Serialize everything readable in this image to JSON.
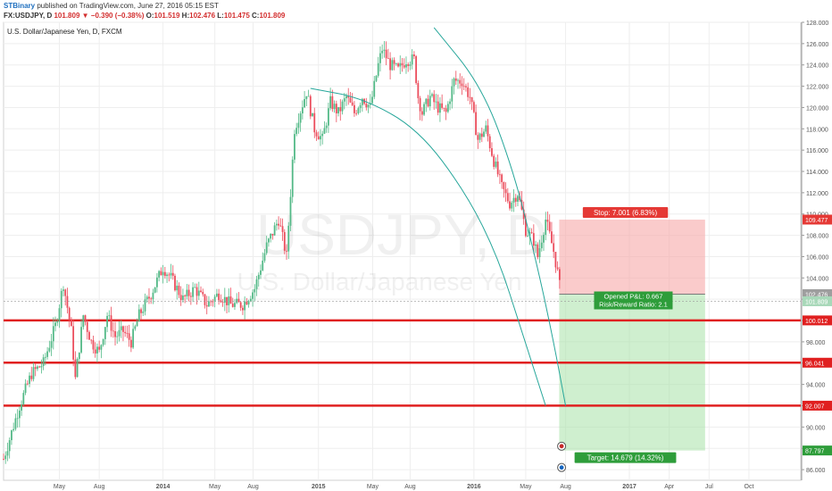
{
  "header": {
    "author": "STBinary",
    "published": " published on TradingView.com, June 27, 2016 05:15 EST",
    "symbol": "FX:USDJPY, D",
    "last_value": "101.809",
    "change": "−0.390 (−0.38%)",
    "o_label": "O:",
    "o_value": "101.519",
    "h_label": "H:",
    "h_value": "102.476",
    "l_label": "L:",
    "l_value": "101.475",
    "c_label": "C:",
    "c_value": "101.809"
  },
  "chart_title": "U.S. Dollar/Japanese Yen, D, FXCM",
  "watermark": {
    "symbol": "USDJPY, D",
    "name": "U.S. Dollar/Japanese Yen"
  },
  "colors": {
    "up": "#53b987",
    "down": "#eb4d5c",
    "level": "#e02020",
    "curve": "#26a69a",
    "stop_zone": "#f7a8a8",
    "target_zone": "#9fdf9f"
  },
  "chart_data": {
    "type": "candlestick",
    "ylim": [
      85,
      128
    ],
    "y_ticks": [
      "86.000",
      "88.000",
      "90.000",
      "92.000",
      "94.000",
      "96.000",
      "98.000",
      "100.000",
      "102.000",
      "104.000",
      "106.000",
      "108.000",
      "110.000",
      "112.000",
      "114.000",
      "116.000",
      "118.000",
      "120.000",
      "122.000",
      "124.000",
      "126.000",
      "128.000"
    ],
    "x_ticks": [
      "May",
      "Aug",
      "2014",
      "May",
      "Aug",
      "2015",
      "May",
      "Aug",
      "2016",
      "May",
      "Aug",
      "2017",
      "Apr",
      "Jul",
      "Oct"
    ],
    "x_tick_fracs": [
      0.07,
      0.12,
      0.2,
      0.265,
      0.313,
      0.395,
      0.463,
      0.51,
      0.59,
      0.655,
      0.705,
      0.785,
      0.835,
      0.885,
      0.935
    ],
    "price_path": [
      [
        0.0,
        87.0
      ],
      [
        0.02,
        92.0
      ],
      [
        0.035,
        95.0
      ],
      [
        0.05,
        96.0
      ],
      [
        0.065,
        99.5
      ],
      [
        0.075,
        103.5
      ],
      [
        0.085,
        99.0
      ],
      [
        0.09,
        94.5
      ],
      [
        0.1,
        100.5
      ],
      [
        0.11,
        98.0
      ],
      [
        0.12,
        97.0
      ],
      [
        0.13,
        100.5
      ],
      [
        0.14,
        98.5
      ],
      [
        0.15,
        99.0
      ],
      [
        0.16,
        98.0
      ],
      [
        0.17,
        100.5
      ],
      [
        0.185,
        102.5
      ],
      [
        0.2,
        105.0
      ],
      [
        0.21,
        104.0
      ],
      [
        0.225,
        102.0
      ],
      [
        0.24,
        103.0
      ],
      [
        0.255,
        101.5
      ],
      [
        0.27,
        102.5
      ],
      [
        0.285,
        101.5
      ],
      [
        0.3,
        101.5
      ],
      [
        0.315,
        103.0
      ],
      [
        0.33,
        107.0
      ],
      [
        0.345,
        109.5
      ],
      [
        0.355,
        106.0
      ],
      [
        0.365,
        118.0
      ],
      [
        0.38,
        121.5
      ],
      [
        0.39,
        118.0
      ],
      [
        0.4,
        117.0
      ],
      [
        0.41,
        120.5
      ],
      [
        0.42,
        119.5
      ],
      [
        0.43,
        121.0
      ],
      [
        0.44,
        119.5
      ],
      [
        0.45,
        121.0
      ],
      [
        0.46,
        120.0
      ],
      [
        0.47,
        124.0
      ],
      [
        0.475,
        125.5
      ],
      [
        0.485,
        124.0
      ],
      [
        0.495,
        123.5
      ],
      [
        0.505,
        124.5
      ],
      [
        0.515,
        124.5
      ],
      [
        0.52,
        121.0
      ],
      [
        0.525,
        119.5
      ],
      [
        0.535,
        121.0
      ],
      [
        0.545,
        120.0
      ],
      [
        0.555,
        119.5
      ],
      [
        0.565,
        122.5
      ],
      [
        0.575,
        122.5
      ],
      [
        0.585,
        121.0
      ],
      [
        0.595,
        117.0
      ],
      [
        0.605,
        118.0
      ],
      [
        0.615,
        115.0
      ],
      [
        0.625,
        112.5
      ],
      [
        0.635,
        111.0
      ],
      [
        0.645,
        112.0
      ],
      [
        0.655,
        108.5
      ],
      [
        0.665,
        107.5
      ],
      [
        0.67,
        106.0
      ],
      [
        0.68,
        109.5
      ],
      [
        0.69,
        106.5
      ],
      [
        0.695,
        104.5
      ],
      [
        0.7,
        102.0
      ]
    ],
    "current_price": 101.809,
    "high_marker": 102.476,
    "horizontal_levels": [
      100.012,
      96.041,
      92.007
    ],
    "trade": {
      "entry": 102.476,
      "stop": 109.477,
      "target": 87.797,
      "stop_label": "Stop: 7.001 (6.83%)",
      "target_label": "Target: 14.679 (14.32%)",
      "pnl_label": "Opened P&L: 0.667",
      "rr_label": "Risk/Reward Ratio: 2.1"
    },
    "price_labels": {
      "stop": "109.477",
      "high": "102.476",
      "last": "101.809",
      "l1": "100.012",
      "l2": "96.041",
      "l3": "92.007",
      "target": "87.797"
    },
    "curves": [
      {
        "points": [
          [
            0.385,
            121.8
          ],
          [
            0.45,
            120.9
          ],
          [
            0.52,
            118.0
          ],
          [
            0.58,
            112.0
          ],
          [
            0.62,
            106.0
          ],
          [
            0.65,
            99.0
          ],
          [
            0.68,
            92.0
          ]
        ]
      },
      {
        "points": [
          [
            0.54,
            127.5
          ],
          [
            0.6,
            122.0
          ],
          [
            0.64,
            114.0
          ],
          [
            0.67,
            105.0
          ],
          [
            0.69,
            98.0
          ],
          [
            0.705,
            92.0
          ]
        ]
      }
    ]
  }
}
